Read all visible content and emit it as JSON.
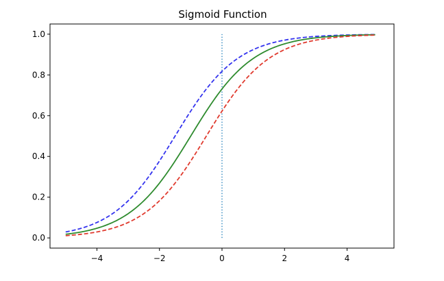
{
  "chart_data": {
    "type": "line",
    "title": "Sigmoid Function",
    "xlabel": "",
    "ylabel": "",
    "xlim": [
      -5.5,
      5.5
    ],
    "ylim": [
      -0.05,
      1.05
    ],
    "x_ticks": [
      -4,
      -2,
      0,
      2,
      4
    ],
    "x_tick_labels": [
      "−4",
      "−2",
      "0",
      "2",
      "4"
    ],
    "y_ticks": [
      0.0,
      0.2,
      0.4,
      0.6,
      0.8,
      1.0
    ],
    "y_tick_labels": [
      "0.0",
      "0.2",
      "0.4",
      "0.6",
      "0.8",
      "1.0"
    ],
    "grid": false,
    "legend": null,
    "x_range": [
      -5,
      4.9
    ],
    "series": [
      {
        "color": "#3333ee",
        "style": "dashed",
        "function": "sigmoid(x + 1.5)",
        "x": [
          -5,
          -4,
          -3,
          -2,
          -1,
          0,
          1,
          2,
          3,
          4,
          4.9
        ],
        "y": [
          0.029,
          0.076,
          0.182,
          0.378,
          0.622,
          0.818,
          0.924,
          0.971,
          0.989,
          0.996,
          0.998
        ]
      },
      {
        "color": "#2e8b2e",
        "style": "solid",
        "function": "sigmoid(x + 1)",
        "x": [
          -5,
          -4,
          -3,
          -2,
          -1,
          0,
          1,
          2,
          3,
          4,
          4.9
        ],
        "y": [
          0.018,
          0.047,
          0.119,
          0.269,
          0.5,
          0.731,
          0.881,
          0.953,
          0.982,
          0.993,
          0.997
        ]
      },
      {
        "color": "#e03a2e",
        "style": "dashed",
        "function": "sigmoid(x + 0.5)",
        "x": [
          -5,
          -4,
          -3,
          -2,
          -1,
          0,
          1,
          2,
          3,
          4,
          4.9
        ],
        "y": [
          0.011,
          0.029,
          0.076,
          0.182,
          0.378,
          0.622,
          0.818,
          0.924,
          0.971,
          0.989,
          0.996
        ]
      }
    ],
    "vertical_line": {
      "x": 0,
      "y_range": [
        0,
        1
      ],
      "color": "#3b8fc4",
      "style": "dotted"
    }
  }
}
